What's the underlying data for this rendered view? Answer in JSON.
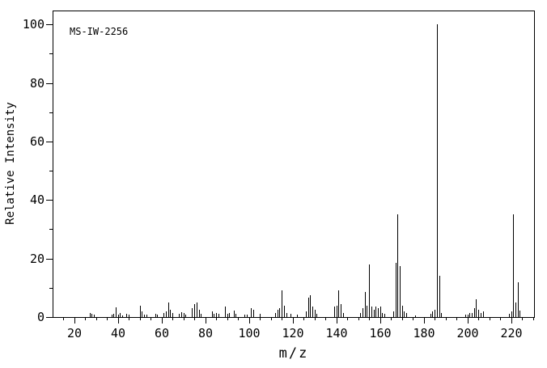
{
  "chart_data": {
    "type": "bar",
    "subtype": "mass-spectrum-stick-plot",
    "title": "",
    "annotation": "MS-IW-2256",
    "xlabel": "m/z",
    "ylabel": "Relative Intensity",
    "grid": false,
    "legend": "none",
    "colors": {
      "line": "#000000",
      "background": "#ffffff",
      "text": "#000000"
    },
    "x_min": 10.5,
    "x_max": 230.5,
    "y_min": 0,
    "y_max": 104.5,
    "x_major_tick_interval": 20,
    "x_minor_tick_interval": 5,
    "x_labeled_ticks": [
      20,
      40,
      60,
      80,
      100,
      120,
      140,
      160,
      180,
      200,
      220
    ],
    "y_major_tick_interval": 20,
    "y_minor_tick_interval": 10,
    "y_labeled_ticks": [
      0,
      20,
      40,
      60,
      80,
      100
    ],
    "peaks": [
      [
        27,
        1.5
      ],
      [
        28,
        1.2
      ],
      [
        29,
        0.7
      ],
      [
        37,
        0.9
      ],
      [
        38,
        1.2
      ],
      [
        39,
        3.4
      ],
      [
        40,
        0.7
      ],
      [
        41,
        1.4
      ],
      [
        42,
        0.6
      ],
      [
        44,
        1.2
      ],
      [
        45,
        0.9
      ],
      [
        50,
        4.0
      ],
      [
        51,
        2.0
      ],
      [
        52,
        0.7
      ],
      [
        53,
        0.8
      ],
      [
        57,
        1.0
      ],
      [
        58,
        0.8
      ],
      [
        61,
        1.5
      ],
      [
        62,
        2.0
      ],
      [
        63,
        5.0
      ],
      [
        64,
        2.5
      ],
      [
        65,
        1.5
      ],
      [
        68,
        1.0
      ],
      [
        69,
        1.7
      ],
      [
        70,
        1.3
      ],
      [
        71,
        0.8
      ],
      [
        74,
        3.0
      ],
      [
        75,
        4.5
      ],
      [
        76,
        5.0
      ],
      [
        77,
        2.5
      ],
      [
        78,
        1.0
      ],
      [
        83,
        2.0
      ],
      [
        84,
        1.0
      ],
      [
        85,
        1.4
      ],
      [
        86,
        1.0
      ],
      [
        89,
        3.7
      ],
      [
        90,
        1.0
      ],
      [
        91,
        1.4
      ],
      [
        93,
        2.3
      ],
      [
        94,
        1.0
      ],
      [
        98,
        0.8
      ],
      [
        99,
        0.8
      ],
      [
        101,
        3.0
      ],
      [
        102,
        2.5
      ],
      [
        105,
        1.0
      ],
      [
        112,
        1.5
      ],
      [
        113,
        2.5
      ],
      [
        114,
        3.0
      ],
      [
        115,
        9.0
      ],
      [
        116,
        4.0
      ],
      [
        117,
        1.5
      ],
      [
        119,
        1.2
      ],
      [
        122,
        0.8
      ],
      [
        126,
        2.0
      ],
      [
        127,
        6.5
      ],
      [
        128,
        7.5
      ],
      [
        129,
        3.5
      ],
      [
        130,
        2.5
      ],
      [
        131,
        1.0
      ],
      [
        139,
        3.5
      ],
      [
        140,
        4.0
      ],
      [
        141,
        9.0
      ],
      [
        142,
        4.5
      ],
      [
        143,
        1.5
      ],
      [
        151,
        1.4
      ],
      [
        152,
        3.0
      ],
      [
        153,
        8.5
      ],
      [
        154,
        4.0
      ],
      [
        155,
        18.0
      ],
      [
        156,
        3.5
      ],
      [
        157,
        2.5
      ],
      [
        158,
        3.5
      ],
      [
        159,
        3.0
      ],
      [
        160,
        3.5
      ],
      [
        161,
        1.5
      ],
      [
        162,
        1.0
      ],
      [
        166,
        2.0
      ],
      [
        167,
        18.5
      ],
      [
        168,
        35.0
      ],
      [
        169,
        17.5
      ],
      [
        170,
        4.0
      ],
      [
        171,
        1.8
      ],
      [
        172,
        1.4
      ],
      [
        176,
        0.6
      ],
      [
        183,
        1.0
      ],
      [
        184,
        1.8
      ],
      [
        185,
        2.5
      ],
      [
        186,
        100.0
      ],
      [
        187,
        14.0
      ],
      [
        188,
        1.5
      ],
      [
        199,
        0.8
      ],
      [
        200,
        0.8
      ],
      [
        201,
        1.4
      ],
      [
        202,
        1.4
      ],
      [
        203,
        3.0
      ],
      [
        204,
        6.0
      ],
      [
        205,
        2.5
      ],
      [
        206,
        1.4
      ],
      [
        207,
        2.0
      ],
      [
        219,
        1.0
      ],
      [
        220,
        2.0
      ],
      [
        221,
        35.0
      ],
      [
        222,
        5.0
      ],
      [
        223,
        12.0
      ],
      [
        224,
        2.3
      ]
    ]
  }
}
